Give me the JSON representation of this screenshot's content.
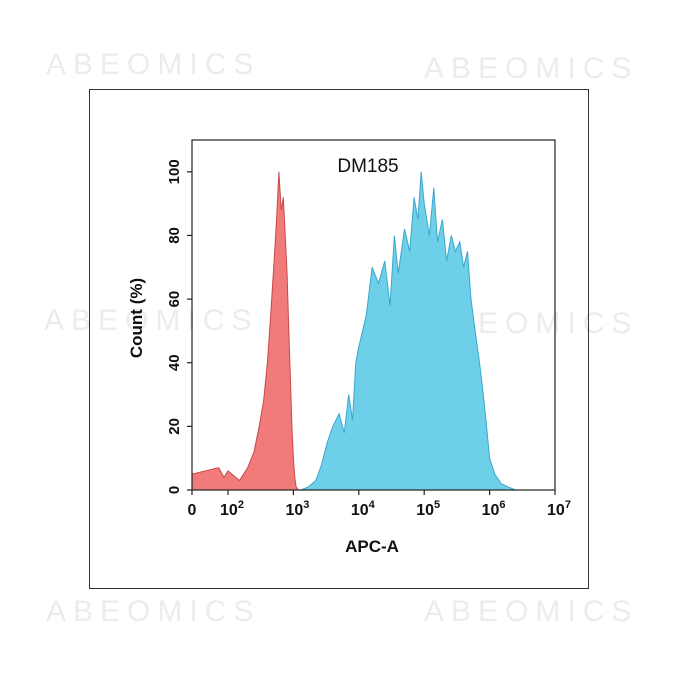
{
  "watermark": {
    "text": "ABEOMICS"
  },
  "chart_data": {
    "type": "area",
    "title": "DM185",
    "xlabel": "APC-A",
    "ylabel": "Count  (%)",
    "xscale": "log",
    "xlim": [
      0,
      10000000
    ],
    "ylim": [
      0,
      110
    ],
    "x_ticks": [
      {
        "value": 0,
        "base": "0",
        "exp": ""
      },
      {
        "value": 100,
        "base": "10",
        "exp": "2"
      },
      {
        "value": 1000,
        "base": "10",
        "exp": "3"
      },
      {
        "value": 10000,
        "base": "10",
        "exp": "4"
      },
      {
        "value": 100000,
        "base": "10",
        "exp": "5"
      },
      {
        "value": 1000000,
        "base": "10",
        "exp": "6"
      },
      {
        "value": 10000000,
        "base": "10",
        "exp": "7"
      }
    ],
    "y_ticks": [
      0,
      20,
      40,
      60,
      80,
      100
    ],
    "grid": false,
    "legend": "none",
    "series": [
      {
        "color": "#f07070",
        "stroke": "#c84848",
        "x": [
          0,
          30,
          60,
          100,
          150,
          200,
          250,
          300,
          350,
          400,
          450,
          500,
          550,
          600,
          650,
          700,
          750,
          800,
          850,
          900,
          950,
          1000,
          1050,
          1100,
          1200
        ],
        "y": [
          5,
          7,
          4,
          6,
          3,
          7,
          12,
          20,
          28,
          40,
          55,
          70,
          84,
          100,
          88,
          92,
          80,
          68,
          50,
          35,
          20,
          10,
          4,
          1,
          0
        ]
      },
      {
        "color": "#66cce8",
        "stroke": "#3aa8cc",
        "x": [
          1300,
          1700,
          2200,
          2700,
          3300,
          4000,
          5000,
          6000,
          7000,
          8000,
          9000,
          10000,
          13000,
          16000,
          20000,
          25000,
          30000,
          35000,
          40000,
          50000,
          60000,
          70000,
          80000,
          90000,
          100000,
          120000,
          140000,
          160000,
          190000,
          220000,
          260000,
          300000,
          350000,
          400000,
          460000,
          520000,
          600000,
          700000,
          800000,
          900000,
          1000000,
          1200000,
          1500000,
          1900000,
          2500000
        ],
        "y": [
          0,
          1,
          3,
          8,
          15,
          20,
          24,
          18,
          30,
          22,
          40,
          45,
          55,
          70,
          65,
          72,
          58,
          80,
          68,
          82,
          75,
          92,
          85,
          100,
          90,
          80,
          95,
          78,
          85,
          72,
          80,
          75,
          78,
          70,
          75,
          60,
          50,
          40,
          30,
          20,
          10,
          5,
          2,
          1,
          0
        ]
      }
    ]
  }
}
